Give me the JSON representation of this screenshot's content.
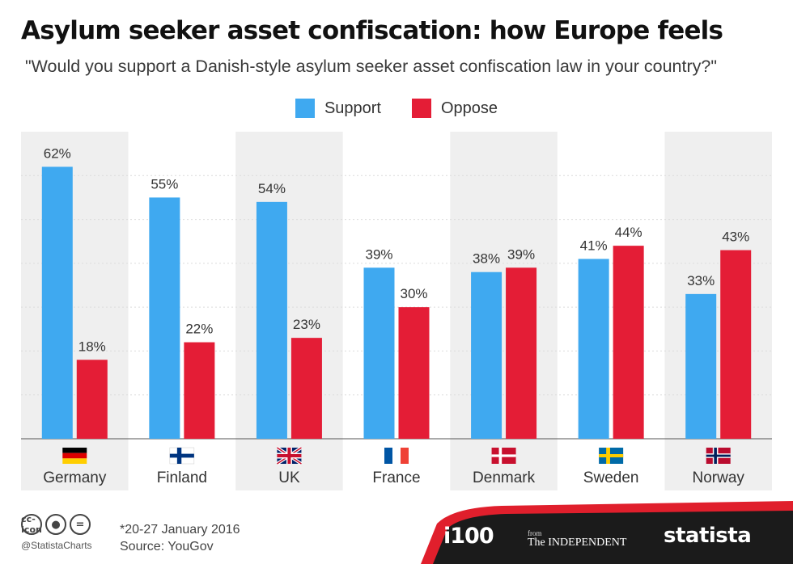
{
  "title": "Asylum seeker asset confiscation: how Europe feels",
  "subtitle": "\"Would you support a Danish-style asylum seeker asset confiscation law in your country?\"",
  "colors": {
    "support": "#3fa9f0",
    "oppose": "#e41d36",
    "band": "#efefef"
  },
  "chart_data": {
    "type": "bar",
    "categories": [
      "Germany",
      "Finland",
      "UK",
      "France",
      "Denmark",
      "Sweden",
      "Norway"
    ],
    "series": [
      {
        "name": "Support",
        "values": [
          62,
          55,
          54,
          39,
          38,
          41,
          33
        ],
        "labels": [
          "62%",
          "55%",
          "54%",
          "39%",
          "38%",
          "41%",
          "33%"
        ]
      },
      {
        "name": "Oppose",
        "values": [
          18,
          22,
          23,
          30,
          39,
          44,
          43
        ],
        "labels": [
          "18%",
          "22%",
          "23%",
          "30%",
          "39%",
          "44%",
          "43%"
        ]
      }
    ],
    "flags": [
      "germany-flag-icon",
      "finland-flag-icon",
      "uk-flag-icon",
      "france-flag-icon",
      "denmark-flag-icon",
      "sweden-flag-icon",
      "norway-flag-icon"
    ],
    "ylim": [
      0,
      70
    ],
    "grid": true,
    "legend": "top-center"
  },
  "footer": {
    "handle": "@StatistaCharts",
    "note": "*20-27 January 2016",
    "source": "Source: YouGov",
    "brand_i100": "i100",
    "brand_from": "from",
    "brand_independent": "The INDEPENDENT",
    "brand_statista": "statista",
    "license_icons": [
      "cc-icon",
      "attribution-icon",
      "no-derivatives-icon"
    ]
  }
}
